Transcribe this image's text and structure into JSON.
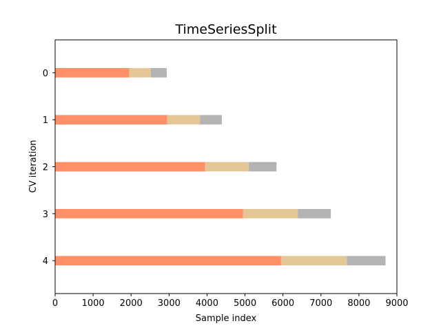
{
  "chart_data": {
    "type": "bar",
    "orientation": "horizontal",
    "stacked": true,
    "title": "TimeSeriesSplit",
    "xlabel": "Sample index",
    "ylabel": "CV iteration",
    "xlim": [
      0,
      9000
    ],
    "ylim": [
      4.7,
      -0.7
    ],
    "xticks": [
      "0",
      "1000",
      "2000",
      "3000",
      "4000",
      "5000",
      "6000",
      "7000",
      "8000",
      "9000"
    ],
    "categories": [
      "0",
      "1",
      "2",
      "3",
      "4"
    ],
    "series": [
      {
        "color": "#ff8f66",
        "start": [
          0,
          0,
          0,
          0,
          0
        ],
        "end": [
          1950,
          2950,
          3950,
          4950,
          5950
        ]
      },
      {
        "color": "#e5c696",
        "start": [
          1950,
          2950,
          3950,
          4950,
          5950
        ],
        "end": [
          2520,
          3820,
          5100,
          6390,
          7680
        ]
      },
      {
        "color": "#b3b3b3",
        "start": [
          2520,
          3820,
          5100,
          6390,
          7680
        ],
        "end": [
          2940,
          4390,
          5830,
          7260,
          8700
        ]
      }
    ],
    "grid": false
  }
}
